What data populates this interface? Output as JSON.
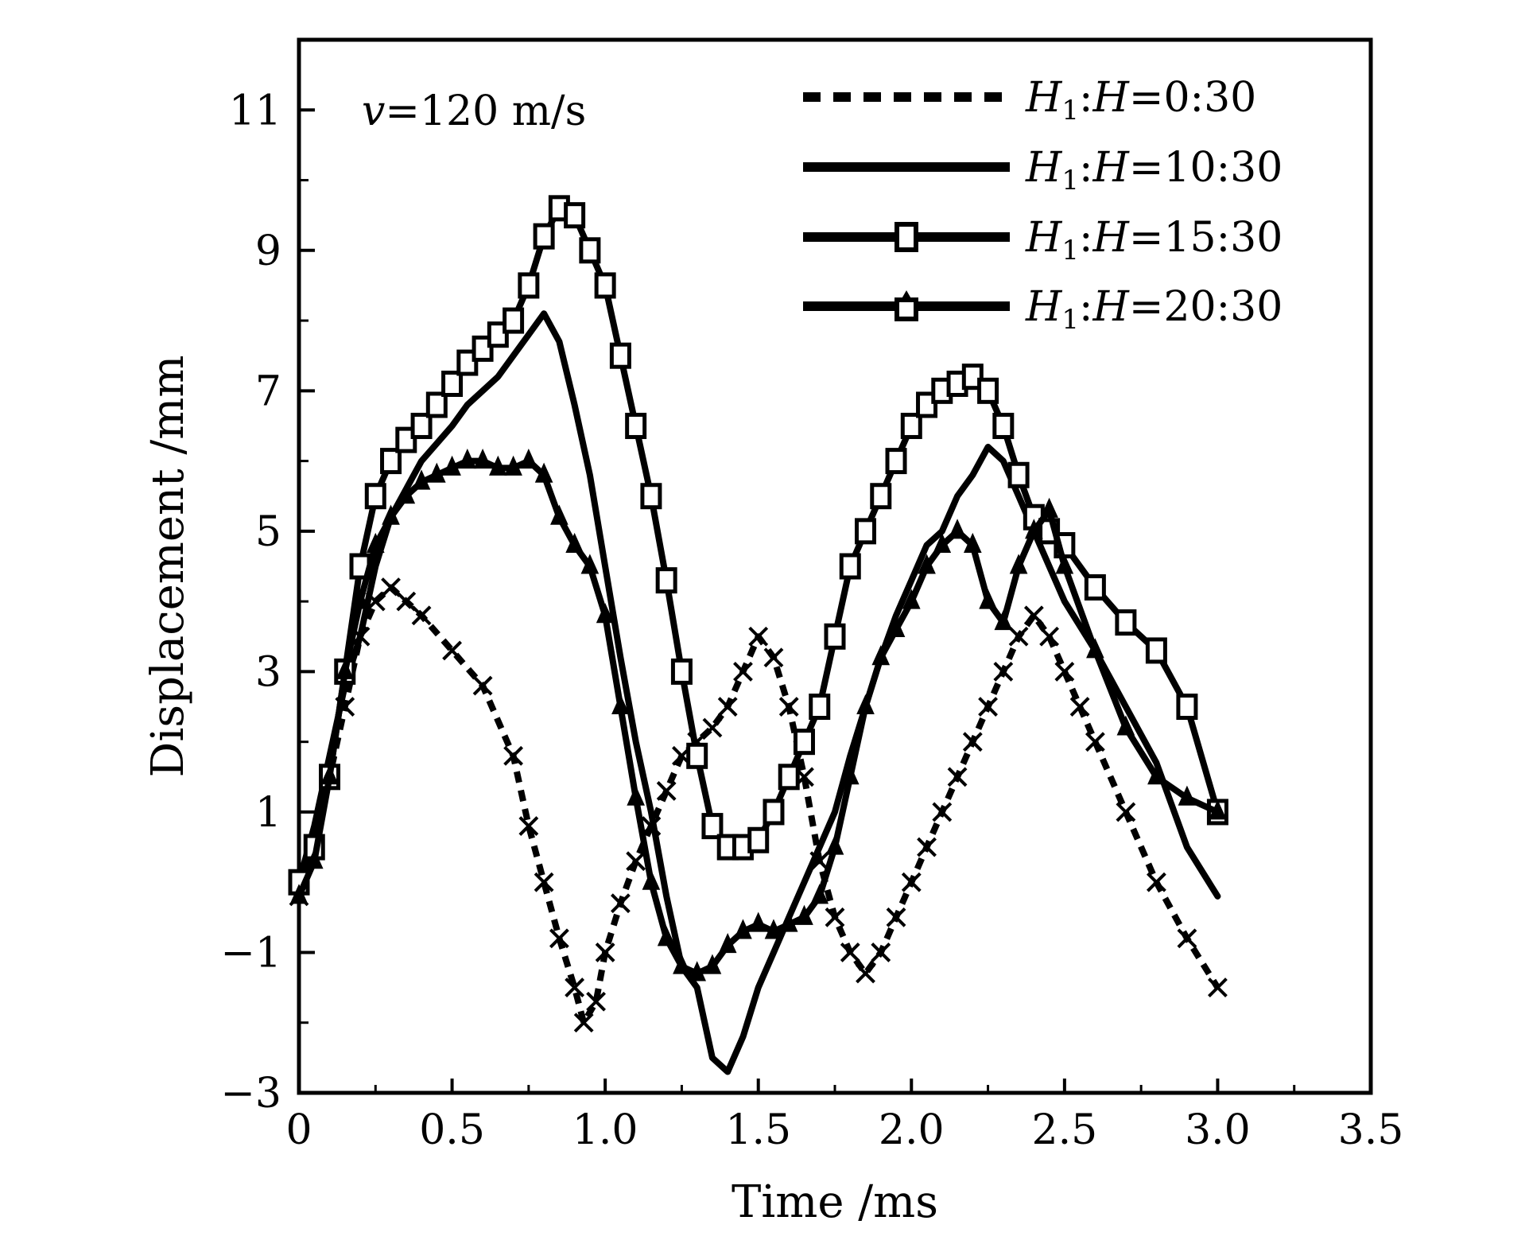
{
  "chart_data": {
    "type": "line",
    "title": "",
    "xlabel": "Time /ms",
    "ylabel": "Displacement /mm",
    "xlim": [
      0,
      3.5
    ],
    "ylim": [
      -3,
      12
    ],
    "xticks": [
      0,
      0.5,
      1.0,
      1.5,
      2.0,
      2.5,
      3.0,
      3.5
    ],
    "xtick_labels": [
      "0",
      "0.5",
      "1.0",
      "1.5",
      "2.0",
      "2.5",
      "3.0",
      "3.5"
    ],
    "yticks": [
      -3,
      -1,
      1,
      3,
      5,
      7,
      9,
      11
    ],
    "ytick_labels": [
      "−3",
      "−1",
      "1",
      "3",
      "5",
      "7",
      "9",
      "11"
    ],
    "grid": false,
    "legend_position": "top-right",
    "annotation": {
      "var": "v",
      "rest": "=120 m/s"
    },
    "series": [
      {
        "name": "H1:H=0:30",
        "legend": {
          "a": "H",
          "sub": "1",
          "b": ":",
          "c": "H",
          "d": "=0:30"
        },
        "style": "dashed",
        "marker": "x",
        "x": [
          0,
          0.05,
          0.1,
          0.15,
          0.2,
          0.25,
          0.3,
          0.35,
          0.4,
          0.5,
          0.6,
          0.7,
          0.75,
          0.8,
          0.85,
          0.9,
          0.93,
          0.97,
          1.0,
          1.05,
          1.1,
          1.15,
          1.2,
          1.25,
          1.3,
          1.35,
          1.4,
          1.45,
          1.5,
          1.55,
          1.6,
          1.65,
          1.7,
          1.75,
          1.8,
          1.85,
          1.9,
          1.95,
          2.0,
          2.05,
          2.1,
          2.15,
          2.2,
          2.25,
          2.3,
          2.35,
          2.4,
          2.45,
          2.5,
          2.55,
          2.6,
          2.7,
          2.8,
          2.9,
          3.0
        ],
        "y": [
          -0.2,
          0.5,
          1.5,
          2.5,
          3.5,
          4.0,
          4.2,
          4.0,
          3.8,
          3.3,
          2.8,
          1.8,
          0.8,
          0.0,
          -0.8,
          -1.5,
          -2.0,
          -1.7,
          -1.0,
          -0.3,
          0.3,
          0.8,
          1.3,
          1.8,
          2.0,
          2.2,
          2.5,
          3.0,
          3.5,
          3.2,
          2.5,
          1.5,
          0.3,
          -0.5,
          -1.0,
          -1.3,
          -1.0,
          -0.5,
          0.0,
          0.5,
          1.0,
          1.5,
          2.0,
          2.5,
          3.0,
          3.5,
          3.8,
          3.5,
          3.0,
          2.5,
          2.0,
          1.0,
          0.0,
          -0.8,
          -1.5
        ]
      },
      {
        "name": "H1:H=10:30",
        "legend": {
          "a": "H",
          "sub": "1",
          "b": ":",
          "c": "H",
          "d": "=10:30"
        },
        "style": "solid",
        "marker": "none",
        "x": [
          0,
          0.05,
          0.1,
          0.15,
          0.2,
          0.25,
          0.3,
          0.35,
          0.4,
          0.5,
          0.55,
          0.6,
          0.65,
          0.7,
          0.75,
          0.8,
          0.85,
          0.9,
          0.95,
          1.0,
          1.05,
          1.1,
          1.15,
          1.2,
          1.25,
          1.3,
          1.35,
          1.4,
          1.45,
          1.5,
          1.55,
          1.6,
          1.65,
          1.7,
          1.75,
          1.8,
          1.85,
          1.9,
          1.95,
          2.0,
          2.05,
          2.1,
          2.15,
          2.2,
          2.25,
          2.3,
          2.35,
          2.4,
          2.45,
          2.5,
          2.6,
          2.7,
          2.8,
          2.9,
          3.0
        ],
        "y": [
          0,
          0.8,
          1.8,
          2.8,
          3.5,
          4.5,
          5.2,
          5.6,
          6.0,
          6.5,
          6.8,
          7.0,
          7.2,
          7.5,
          7.8,
          8.1,
          7.7,
          6.8,
          5.8,
          4.5,
          3.2,
          2.0,
          1.0,
          -0.2,
          -1.2,
          -1.5,
          -2.5,
          -2.7,
          -2.2,
          -1.5,
          -1.0,
          -0.5,
          0.0,
          0.5,
          1.0,
          1.8,
          2.5,
          3.2,
          3.8,
          4.3,
          4.8,
          5.0,
          5.5,
          5.8,
          6.2,
          6.0,
          5.5,
          5.0,
          4.5,
          4.0,
          3.3,
          2.5,
          1.7,
          0.5,
          -0.2
        ]
      },
      {
        "name": "H1:H=15:30",
        "legend": {
          "a": "H",
          "sub": "1",
          "b": ":",
          "c": "H",
          "d": "=15:30"
        },
        "style": "solid",
        "marker": "square",
        "x": [
          0,
          0.05,
          0.1,
          0.15,
          0.2,
          0.25,
          0.3,
          0.35,
          0.4,
          0.45,
          0.5,
          0.55,
          0.6,
          0.65,
          0.7,
          0.75,
          0.8,
          0.85,
          0.9,
          0.95,
          1.0,
          1.05,
          1.1,
          1.15,
          1.2,
          1.25,
          1.3,
          1.35,
          1.4,
          1.45,
          1.5,
          1.55,
          1.6,
          1.65,
          1.7,
          1.75,
          1.8,
          1.85,
          1.9,
          1.95,
          2.0,
          2.05,
          2.1,
          2.15,
          2.2,
          2.25,
          2.3,
          2.35,
          2.4,
          2.45,
          2.5,
          2.6,
          2.7,
          2.8,
          2.9,
          3.0
        ],
        "y": [
          0,
          0.5,
          1.5,
          3.0,
          4.5,
          5.5,
          6.0,
          6.3,
          6.5,
          6.8,
          7.1,
          7.4,
          7.6,
          7.8,
          8.0,
          8.5,
          9.2,
          9.6,
          9.5,
          9.0,
          8.5,
          7.5,
          6.5,
          5.5,
          4.3,
          3.0,
          1.8,
          0.8,
          0.5,
          0.5,
          0.6,
          1.0,
          1.5,
          2.0,
          2.5,
          3.5,
          4.5,
          5.0,
          5.5,
          6.0,
          6.5,
          6.8,
          7.0,
          7.1,
          7.2,
          7.0,
          6.5,
          5.8,
          5.2,
          5.0,
          4.8,
          4.2,
          3.7,
          3.3,
          2.5,
          1.0
        ]
      },
      {
        "name": "H1:H=20:30",
        "legend": {
          "a": "H",
          "sub": "1",
          "b": ":",
          "c": "H",
          "d": "=20:30"
        },
        "style": "solid",
        "marker": "triangle",
        "x": [
          0,
          0.05,
          0.1,
          0.15,
          0.2,
          0.25,
          0.3,
          0.35,
          0.4,
          0.45,
          0.5,
          0.55,
          0.6,
          0.65,
          0.7,
          0.75,
          0.8,
          0.85,
          0.9,
          0.95,
          1.0,
          1.05,
          1.1,
          1.15,
          1.2,
          1.25,
          1.3,
          1.35,
          1.4,
          1.45,
          1.5,
          1.55,
          1.6,
          1.65,
          1.7,
          1.75,
          1.8,
          1.85,
          1.9,
          1.95,
          2.0,
          2.05,
          2.1,
          2.15,
          2.2,
          2.25,
          2.3,
          2.35,
          2.4,
          2.45,
          2.5,
          2.6,
          2.7,
          2.8,
          2.9,
          3.0
        ],
        "y": [
          -0.2,
          0.3,
          1.5,
          3.0,
          4.0,
          4.8,
          5.2,
          5.5,
          5.7,
          5.8,
          5.9,
          6.0,
          6.0,
          5.9,
          5.9,
          6.0,
          5.8,
          5.2,
          4.8,
          4.5,
          3.8,
          2.5,
          1.2,
          0.0,
          -0.8,
          -1.2,
          -1.3,
          -1.2,
          -0.9,
          -0.7,
          -0.6,
          -0.7,
          -0.6,
          -0.5,
          -0.2,
          0.5,
          1.5,
          2.5,
          3.2,
          3.6,
          4.0,
          4.5,
          4.8,
          5.0,
          4.8,
          4.0,
          3.7,
          4.5,
          5.0,
          5.3,
          4.5,
          3.3,
          2.2,
          1.5,
          1.2,
          1.0
        ]
      }
    ]
  }
}
